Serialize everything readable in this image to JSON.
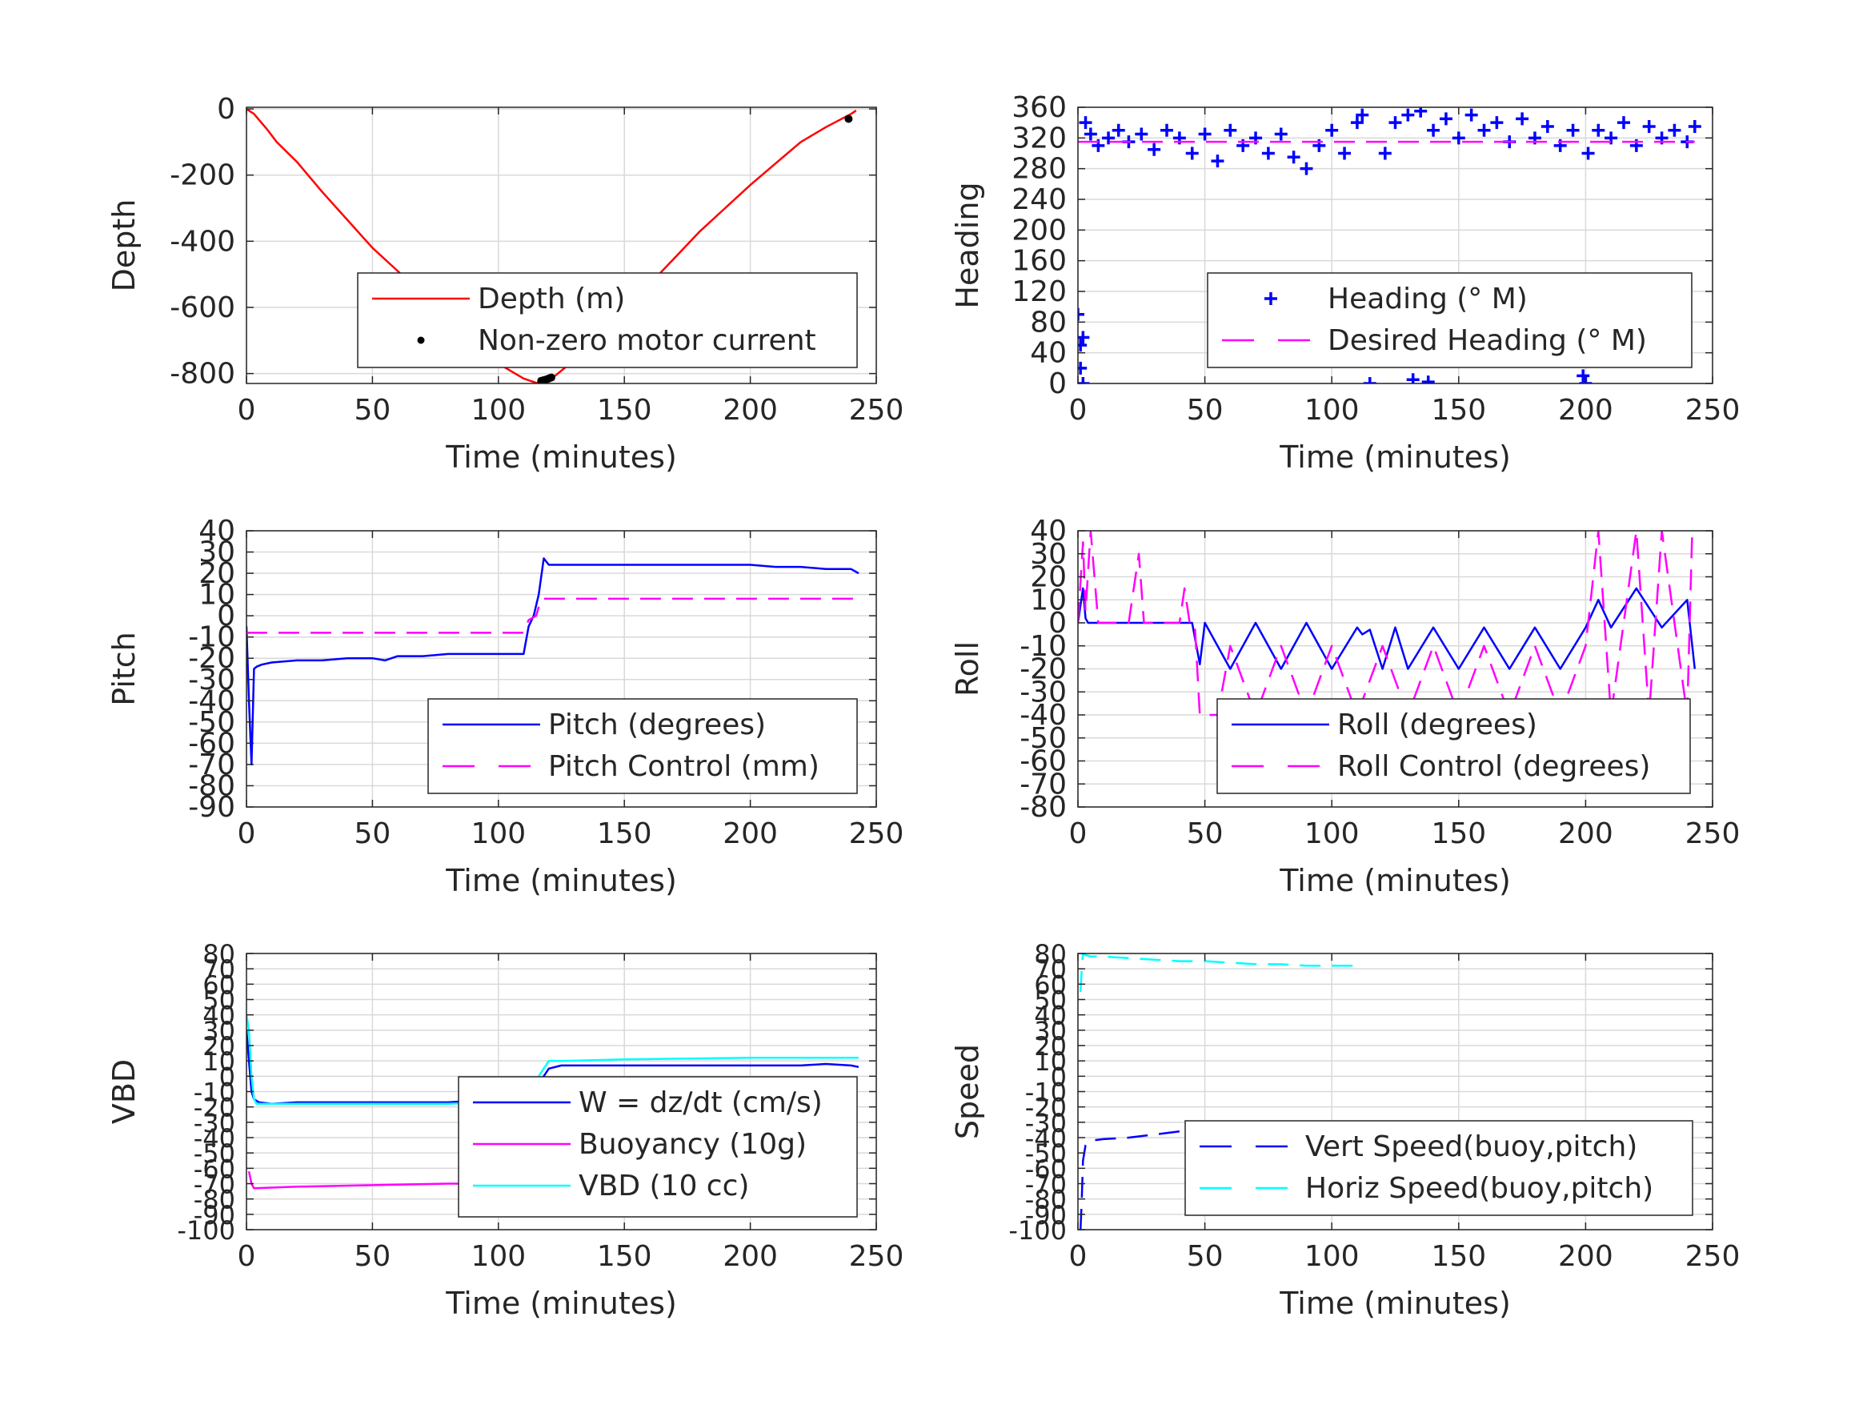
{
  "colors": {
    "red": "#ff0000",
    "blue": "#0000ff",
    "magenta": "#ff00ff",
    "cyan": "#00ffff",
    "black": "#000000",
    "grid": "#d9d9d9",
    "axis": "#262626"
  },
  "chart_data": [
    {
      "type": "line",
      "xlabel": "Time (minutes)",
      "ylabel": "Depth",
      "xlim": [
        0,
        250
      ],
      "ylim": [
        -830,
        5
      ],
      "xticks": [
        0,
        50,
        100,
        150,
        200,
        250
      ],
      "yticks": [
        0,
        -200,
        -400,
        -600,
        -800
      ],
      "grid": true,
      "legend": "lower-right",
      "series": [
        {
          "name": "Depth (m)",
          "color": "#ff0000",
          "style": "solid",
          "x": [
            0,
            3,
            8,
            12,
            20,
            30,
            40,
            50,
            60,
            70,
            80,
            90,
            100,
            110,
            115,
            118,
            120,
            122,
            130,
            140,
            150,
            160,
            170,
            180,
            190,
            200,
            210,
            220,
            230,
            240,
            242
          ],
          "y": [
            0,
            -15,
            -60,
            -100,
            -160,
            -250,
            -335,
            -420,
            -490,
            -560,
            -630,
            -700,
            -770,
            -815,
            -828,
            -828,
            -820,
            -810,
            -760,
            -690,
            -610,
            -530,
            -450,
            -370,
            -300,
            -230,
            -165,
            -100,
            -55,
            -15,
            -5
          ]
        },
        {
          "name": "Non-zero motor current",
          "color": "#000000",
          "style": "dots",
          "x": [
            117,
            118,
            119,
            120,
            121,
            150,
            239
          ],
          "y": [
            -822,
            -820,
            -818,
            -815,
            -812,
            -625,
            -30
          ]
        }
      ]
    },
    {
      "type": "scatter",
      "xlabel": "Time (minutes)",
      "ylabel": "Heading",
      "xlim": [
        0,
        250
      ],
      "ylim": [
        0,
        360
      ],
      "xticks": [
        0,
        50,
        100,
        150,
        200,
        250
      ],
      "yticks": [
        0,
        40,
        80,
        120,
        160,
        200,
        240,
        280,
        320,
        360
      ],
      "grid": true,
      "legend": "lower-right",
      "series": [
        {
          "name": "Heading (° M)",
          "color": "#0000ff",
          "style": "plus",
          "x": [
            0,
            1,
            1,
            2,
            2,
            3,
            5,
            8,
            12,
            16,
            20,
            25,
            30,
            35,
            40,
            45,
            50,
            55,
            60,
            65,
            70,
            75,
            80,
            85,
            90,
            95,
            100,
            105,
            110,
            112,
            115,
            116,
            117,
            118,
            119,
            120,
            121,
            125,
            130,
            132,
            135,
            138,
            140,
            145,
            150,
            155,
            160,
            165,
            170,
            175,
            180,
            185,
            190,
            195,
            198,
            199,
            200,
            201,
            205,
            210,
            215,
            220,
            225,
            230,
            235,
            240,
            243
          ],
          "y": [
            90,
            50,
            20,
            60,
            0,
            340,
            325,
            310,
            320,
            330,
            315,
            325,
            305,
            330,
            320,
            300,
            325,
            290,
            330,
            310,
            320,
            300,
            325,
            295,
            280,
            310,
            330,
            300,
            340,
            350,
            0,
            60,
            90,
            95,
            85,
            30,
            300,
            340,
            350,
            5,
            355,
            2,
            330,
            345,
            320,
            350,
            330,
            340,
            315,
            345,
            320,
            335,
            310,
            330,
            40,
            10,
            0,
            300,
            330,
            320,
            340,
            310,
            335,
            320,
            330,
            315,
            335
          ]
        },
        {
          "name": "Desired Heading (° M)",
          "color": "#ff00ff",
          "style": "dashed",
          "x": [
            0,
            243
          ],
          "y": [
            315,
            315
          ]
        }
      ]
    },
    {
      "type": "line",
      "xlabel": "Time (minutes)",
      "ylabel": "Pitch",
      "xlim": [
        0,
        250
      ],
      "ylim": [
        -90,
        40
      ],
      "xticks": [
        0,
        50,
        100,
        150,
        200,
        250
      ],
      "yticks": [
        40,
        30,
        20,
        10,
        0,
        -10,
        -20,
        -30,
        -40,
        -50,
        -60,
        -70,
        -80,
        -90
      ],
      "grid": true,
      "legend": "lower-right",
      "series": [
        {
          "name": "Pitch (degrees)",
          "color": "#0000ff",
          "style": "solid",
          "x": [
            0,
            1,
            2,
            3,
            4,
            6,
            10,
            20,
            30,
            40,
            50,
            55,
            60,
            70,
            80,
            90,
            100,
            110,
            112,
            114,
            116,
            118,
            120,
            130,
            140,
            150,
            160,
            170,
            180,
            190,
            200,
            210,
            220,
            230,
            240,
            243
          ],
          "y": [
            -5,
            -40,
            -70,
            -25,
            -24,
            -23,
            -22,
            -21,
            -21,
            -20,
            -20,
            -21,
            -19,
            -19,
            -18,
            -18,
            -18,
            -18,
            -5,
            0,
            10,
            27,
            24,
            24,
            24,
            24,
            24,
            24,
            24,
            24,
            24,
            23,
            23,
            22,
            22,
            20
          ]
        },
        {
          "name": "Pitch Control (mm)",
          "color": "#ff00ff",
          "style": "dashed",
          "x": [
            0,
            110,
            112,
            115,
            117,
            243
          ],
          "y": [
            -8,
            -8,
            -2,
            0,
            8,
            8
          ]
        }
      ]
    },
    {
      "type": "line",
      "xlabel": "Time (minutes)",
      "ylabel": "Roll",
      "xlim": [
        0,
        250
      ],
      "ylim": [
        -80,
        40
      ],
      "xticks": [
        0,
        50,
        100,
        150,
        200,
        250
      ],
      "yticks": [
        40,
        30,
        20,
        10,
        0,
        -10,
        -20,
        -30,
        -40,
        -50,
        -60,
        -70,
        -80
      ],
      "grid": true,
      "legend": "lower-right",
      "series": [
        {
          "name": "Roll (degrees)",
          "color": "#0000ff",
          "style": "solid",
          "x": [
            0,
            2,
            3,
            4,
            6,
            10,
            20,
            30,
            40,
            45,
            48,
            50,
            60,
            70,
            80,
            90,
            100,
            110,
            112,
            115,
            120,
            125,
            130,
            140,
            150,
            160,
            170,
            180,
            190,
            200,
            205,
            210,
            220,
            230,
            240,
            243
          ],
          "y": [
            0,
            15,
            2,
            0,
            0,
            0,
            0,
            0,
            0,
            0,
            -18,
            0,
            -20,
            0,
            -20,
            0,
            -20,
            -2,
            -5,
            -3,
            -20,
            -2,
            -20,
            -2,
            -20,
            -2,
            -20,
            -2,
            -20,
            -2,
            10,
            -2,
            15,
            -2,
            10,
            -20
          ]
        },
        {
          "name": "Roll Control (degrees)",
          "color": "#ff00ff",
          "style": "dashed",
          "x": [
            0,
            2,
            3,
            5,
            8,
            10,
            20,
            24,
            26,
            40,
            42,
            44,
            46,
            48,
            55,
            60,
            70,
            80,
            90,
            100,
            110,
            120,
            130,
            140,
            150,
            160,
            170,
            180,
            190,
            200,
            205,
            210,
            220,
            225,
            230,
            240,
            242
          ],
          "y": [
            0,
            35,
            5,
            40,
            0,
            0,
            0,
            30,
            0,
            0,
            15,
            0,
            0,
            -40,
            -40,
            -10,
            -40,
            -10,
            -40,
            -10,
            -40,
            -10,
            -40,
            -10,
            -40,
            -10,
            -40,
            -10,
            -40,
            -10,
            40,
            -40,
            40,
            -40,
            40,
            -40,
            40
          ]
        }
      ]
    },
    {
      "type": "line",
      "xlabel": "Time (minutes)",
      "ylabel": "VBD",
      "xlim": [
        0,
        250
      ],
      "ylim": [
        -100,
        80
      ],
      "xticks": [
        0,
        50,
        100,
        150,
        200,
        250
      ],
      "yticks": [
        80,
        70,
        60,
        50,
        40,
        30,
        20,
        10,
        0,
        -10,
        -20,
        -30,
        -40,
        -50,
        -60,
        -70,
        -80,
        -90,
        -100
      ],
      "grid": true,
      "legend": "lower-right",
      "series": [
        {
          "name": "W = dz/dt (cm/s)",
          "color": "#0000ff",
          "style": "solid",
          "x": [
            0,
            1,
            2,
            3,
            5,
            10,
            20,
            30,
            40,
            50,
            60,
            70,
            80,
            90,
            100,
            110,
            112,
            115,
            118,
            120,
            125,
            130,
            140,
            150,
            160,
            170,
            180,
            190,
            200,
            210,
            220,
            230,
            240,
            243
          ],
          "y": [
            30,
            10,
            -10,
            -15,
            -17,
            -18,
            -17,
            -17,
            -17,
            -17,
            -17,
            -17,
            -17,
            -16,
            -16,
            -16,
            -12,
            -5,
            0,
            5,
            7,
            7,
            7,
            7,
            7,
            7,
            7,
            7,
            7,
            7,
            7,
            8,
            7,
            6
          ]
        },
        {
          "name": "Buoyancy (10g)",
          "color": "#ff00ff",
          "style": "solid",
          "x": [
            1,
            2,
            3,
            20,
            50,
            80,
            110
          ],
          "y": [
            -62,
            -70,
            -73,
            -72,
            -71,
            -70,
            -70
          ]
        },
        {
          "name": "VBD (10 cc)",
          "color": "#00ffff",
          "style": "solid",
          "x": [
            0,
            1,
            2,
            3,
            4,
            10,
            20,
            40,
            60,
            80,
            100,
            110,
            112,
            116,
            120,
            125,
            150,
            200,
            243
          ],
          "y": [
            40,
            30,
            0,
            -15,
            -18,
            -18,
            -18,
            -18,
            -18,
            -18,
            -17,
            -17,
            -12,
            0,
            10,
            10,
            11,
            12,
            12
          ]
        }
      ]
    },
    {
      "type": "line",
      "xlabel": "Time (minutes)",
      "ylabel": "Speed",
      "xlim": [
        0,
        250
      ],
      "ylim": [
        -100,
        80
      ],
      "xticks": [
        0,
        50,
        100,
        150,
        200,
        250
      ],
      "yticks": [
        80,
        70,
        60,
        50,
        40,
        30,
        20,
        10,
        0,
        -10,
        -20,
        -30,
        -40,
        -50,
        -60,
        -70,
        -80,
        -90,
        -100
      ],
      "grid": true,
      "legend": "lower-right",
      "series": [
        {
          "name": "Vert Speed(buoy,pitch)",
          "color": "#0000ff",
          "style": "dashed",
          "x": [
            1,
            1.5,
            2,
            3,
            5,
            10,
            20,
            30,
            40,
            50,
            60,
            70,
            80,
            90,
            100,
            110,
            112
          ],
          "y": [
            -100,
            -80,
            -55,
            -45,
            -42,
            -41,
            -40,
            -38,
            -36,
            -35,
            -34,
            -34,
            -33,
            -33,
            -33,
            -32,
            -32
          ]
        },
        {
          "name": "Horiz Speed(buoy,pitch)",
          "color": "#00ffff",
          "style": "dashed",
          "x": [
            1,
            1.5,
            2,
            3,
            5,
            10,
            20,
            30,
            40,
            50,
            60,
            70,
            80,
            90,
            100,
            110,
            112
          ],
          "y": [
            55,
            70,
            80,
            79,
            78,
            78,
            77,
            76,
            75,
            75,
            74,
            73,
            73,
            72,
            72,
            72,
            72
          ]
        }
      ]
    }
  ]
}
